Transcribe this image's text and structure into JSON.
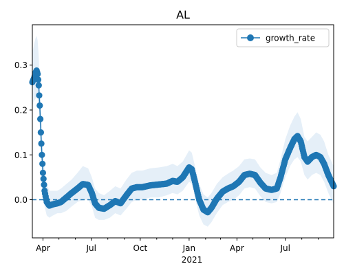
{
  "chart_data": {
    "type": "line",
    "title": "AL",
    "xlabel": "",
    "ylabel": "",
    "ylim": [
      -0.085,
      0.39
    ],
    "xlim": [
      "2020-03-12",
      "2021-09-30"
    ],
    "grid": false,
    "legend": "top-right",
    "x_ticks": [
      {
        "date": "2020-04-01",
        "label": "Apr"
      },
      {
        "date": "2020-07-01",
        "label": "Jul"
      },
      {
        "date": "2020-10-01",
        "label": "Oct"
      },
      {
        "date": "2021-01-01",
        "label": "Jan"
      },
      {
        "date": "2021-04-01",
        "label": "Apr"
      },
      {
        "date": "2021-07-01",
        "label": "Jul"
      }
    ],
    "x_year_label": "2021",
    "y_ticks": [
      0.0,
      0.1,
      0.2,
      0.3
    ],
    "y_tick_labels": [
      "0.0",
      "0.1",
      "0.2",
      "0.3"
    ],
    "reference_line": {
      "y": 0.0,
      "style": "dashed"
    },
    "colors": {
      "line": "#1f77b4",
      "band": "#dce9f5"
    },
    "series": [
      {
        "name": "growth_rate",
        "points": [
          {
            "x": "2020-03-12",
            "y": 0.262,
            "lo": 0.21,
            "hi": 0.33
          },
          {
            "x": "2020-03-15",
            "y": 0.27,
            "lo": 0.22,
            "hi": 0.345
          },
          {
            "x": "2020-03-18",
            "y": 0.283,
            "lo": 0.225,
            "hi": 0.36
          },
          {
            "x": "2020-03-20",
            "y": 0.288,
            "lo": 0.23,
            "hi": 0.365
          },
          {
            "x": "2020-03-22",
            "y": 0.28,
            "lo": 0.225,
            "hi": 0.355
          },
          {
            "x": "2020-03-24",
            "y": 0.255,
            "lo": 0.2,
            "hi": 0.32
          },
          {
            "x": "2020-03-26",
            "y": 0.21,
            "lo": 0.16,
            "hi": 0.27
          },
          {
            "x": "2020-03-28",
            "y": 0.15,
            "lo": 0.1,
            "hi": 0.21
          },
          {
            "x": "2020-03-30",
            "y": 0.1,
            "lo": 0.055,
            "hi": 0.155
          },
          {
            "x": "2020-04-01",
            "y": 0.06,
            "lo": 0.02,
            "hi": 0.11
          },
          {
            "x": "2020-04-04",
            "y": 0.02,
            "lo": -0.015,
            "hi": 0.065
          },
          {
            "x": "2020-04-08",
            "y": -0.005,
            "lo": -0.035,
            "hi": 0.035
          },
          {
            "x": "2020-04-13",
            "y": -0.013,
            "lo": -0.04,
            "hi": 0.02
          },
          {
            "x": "2020-04-20",
            "y": -0.01,
            "lo": -0.035,
            "hi": 0.02
          },
          {
            "x": "2020-04-28",
            "y": -0.008,
            "lo": -0.03,
            "hi": 0.02
          },
          {
            "x": "2020-05-05",
            "y": -0.005,
            "lo": -0.03,
            "hi": 0.025
          },
          {
            "x": "2020-05-15",
            "y": 0.005,
            "lo": -0.025,
            "hi": 0.035
          },
          {
            "x": "2020-05-25",
            "y": 0.015,
            "lo": -0.015,
            "hi": 0.045
          },
          {
            "x": "2020-06-05",
            "y": 0.025,
            "lo": -0.005,
            "hi": 0.06
          },
          {
            "x": "2020-06-15",
            "y": 0.035,
            "lo": 0.0,
            "hi": 0.075
          },
          {
            "x": "2020-06-25",
            "y": 0.033,
            "lo": 0.0,
            "hi": 0.07
          },
          {
            "x": "2020-07-02",
            "y": 0.015,
            "lo": -0.015,
            "hi": 0.05
          },
          {
            "x": "2020-07-08",
            "y": -0.008,
            "lo": -0.04,
            "hi": 0.025
          },
          {
            "x": "2020-07-15",
            "y": -0.018,
            "lo": -0.045,
            "hi": 0.015
          },
          {
            "x": "2020-07-25",
            "y": -0.02,
            "lo": -0.045,
            "hi": 0.01
          },
          {
            "x": "2020-08-05",
            "y": -0.012,
            "lo": -0.04,
            "hi": 0.02
          },
          {
            "x": "2020-08-15",
            "y": -0.003,
            "lo": -0.03,
            "hi": 0.03
          },
          {
            "x": "2020-08-25",
            "y": -0.008,
            "lo": -0.035,
            "hi": 0.025
          },
          {
            "x": "2020-09-05",
            "y": 0.01,
            "lo": -0.02,
            "hi": 0.045
          },
          {
            "x": "2020-09-15",
            "y": 0.025,
            "lo": -0.005,
            "hi": 0.06
          },
          {
            "x": "2020-09-25",
            "y": 0.028,
            "lo": 0.0,
            "hi": 0.065
          },
          {
            "x": "2020-10-05",
            "y": 0.028,
            "lo": 0.0,
            "hi": 0.065
          },
          {
            "x": "2020-10-20",
            "y": 0.032,
            "lo": 0.005,
            "hi": 0.07
          },
          {
            "x": "2020-11-05",
            "y": 0.034,
            "lo": 0.005,
            "hi": 0.072
          },
          {
            "x": "2020-11-20",
            "y": 0.036,
            "lo": 0.01,
            "hi": 0.075
          },
          {
            "x": "2020-12-01",
            "y": 0.042,
            "lo": 0.015,
            "hi": 0.08
          },
          {
            "x": "2020-12-10",
            "y": 0.04,
            "lo": 0.012,
            "hi": 0.075
          },
          {
            "x": "2020-12-20",
            "y": 0.05,
            "lo": 0.02,
            "hi": 0.085
          },
          {
            "x": "2021-01-01",
            "y": 0.072,
            "lo": 0.04,
            "hi": 0.11
          },
          {
            "x": "2021-01-06",
            "y": 0.068,
            "lo": 0.035,
            "hi": 0.105
          },
          {
            "x": "2021-01-12",
            "y": 0.04,
            "lo": 0.005,
            "hi": 0.075
          },
          {
            "x": "2021-01-20",
            "y": 0.0,
            "lo": -0.035,
            "hi": 0.035
          },
          {
            "x": "2021-01-28",
            "y": -0.022,
            "lo": -0.055,
            "hi": 0.012
          },
          {
            "x": "2021-02-05",
            "y": -0.028,
            "lo": -0.06,
            "hi": 0.005
          },
          {
            "x": "2021-02-12",
            "y": -0.018,
            "lo": -0.05,
            "hi": 0.015
          },
          {
            "x": "2021-02-22",
            "y": 0.002,
            "lo": -0.03,
            "hi": 0.035
          },
          {
            "x": "2021-03-05",
            "y": 0.018,
            "lo": -0.012,
            "hi": 0.05
          },
          {
            "x": "2021-03-15",
            "y": 0.025,
            "lo": -0.005,
            "hi": 0.058
          },
          {
            "x": "2021-03-25",
            "y": 0.03,
            "lo": 0.0,
            "hi": 0.065
          },
          {
            "x": "2021-04-05",
            "y": 0.04,
            "lo": 0.01,
            "hi": 0.075
          },
          {
            "x": "2021-04-15",
            "y": 0.055,
            "lo": 0.025,
            "hi": 0.09
          },
          {
            "x": "2021-04-25",
            "y": 0.058,
            "lo": 0.028,
            "hi": 0.092
          },
          {
            "x": "2021-05-05",
            "y": 0.055,
            "lo": 0.025,
            "hi": 0.09
          },
          {
            "x": "2021-05-15",
            "y": 0.038,
            "lo": 0.008,
            "hi": 0.072
          },
          {
            "x": "2021-05-25",
            "y": 0.025,
            "lo": -0.005,
            "hi": 0.06
          },
          {
            "x": "2021-06-05",
            "y": 0.022,
            "lo": -0.008,
            "hi": 0.055
          },
          {
            "x": "2021-06-15",
            "y": 0.025,
            "lo": -0.005,
            "hi": 0.06
          },
          {
            "x": "2021-06-22",
            "y": 0.05,
            "lo": 0.015,
            "hi": 0.09
          },
          {
            "x": "2021-07-01",
            "y": 0.09,
            "lo": 0.05,
            "hi": 0.135
          },
          {
            "x": "2021-07-10",
            "y": 0.115,
            "lo": 0.075,
            "hi": 0.165
          },
          {
            "x": "2021-07-18",
            "y": 0.135,
            "lo": 0.09,
            "hi": 0.185
          },
          {
            "x": "2021-07-24",
            "y": 0.142,
            "lo": 0.095,
            "hi": 0.195
          },
          {
            "x": "2021-07-30",
            "y": 0.13,
            "lo": 0.085,
            "hi": 0.18
          },
          {
            "x": "2021-08-06",
            "y": 0.095,
            "lo": 0.055,
            "hi": 0.14
          },
          {
            "x": "2021-08-12",
            "y": 0.085,
            "lo": 0.045,
            "hi": 0.13
          },
          {
            "x": "2021-08-20",
            "y": 0.095,
            "lo": 0.055,
            "hi": 0.14
          },
          {
            "x": "2021-08-28",
            "y": 0.1,
            "lo": 0.06,
            "hi": 0.15
          },
          {
            "x": "2021-09-05",
            "y": 0.095,
            "lo": 0.055,
            "hi": 0.145
          },
          {
            "x": "2021-09-12",
            "y": 0.08,
            "lo": 0.04,
            "hi": 0.13
          },
          {
            "x": "2021-09-20",
            "y": 0.055,
            "lo": 0.015,
            "hi": 0.1
          },
          {
            "x": "2021-09-30",
            "y": 0.03,
            "lo": -0.01,
            "hi": 0.075
          }
        ]
      }
    ]
  }
}
